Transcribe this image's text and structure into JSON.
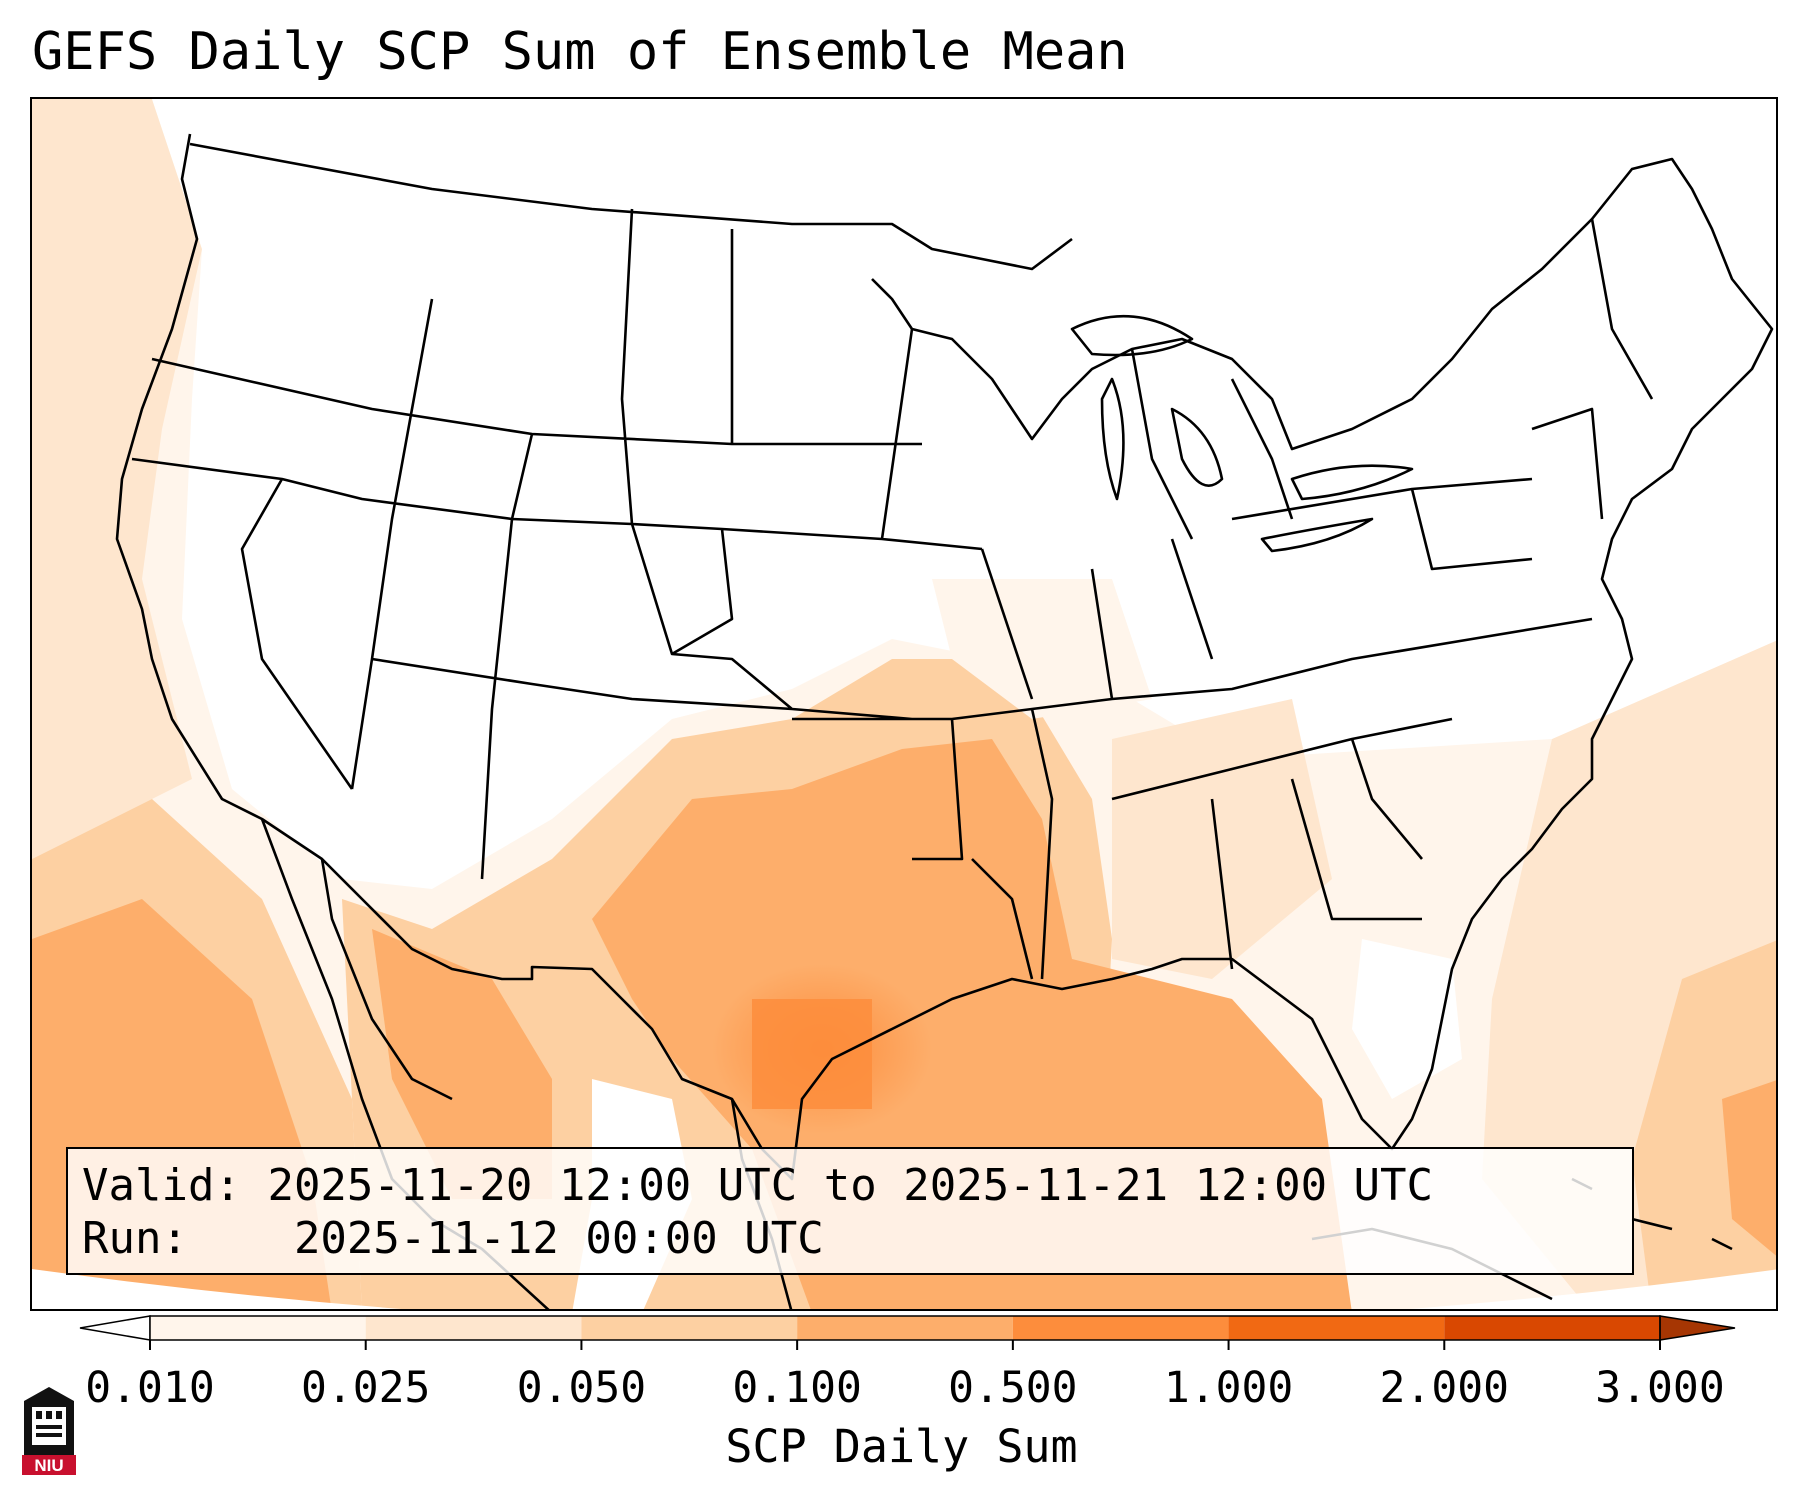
{
  "title": "GEFS Daily SCP Sum of Ensemble Mean",
  "info": {
    "valid_label": "Valid:",
    "valid_value": "2025-11-20 12:00 UTC to 2025-11-21 12:00 UTC",
    "run_label": "Run:",
    "run_value": "2025-11-12 00:00 UTC"
  },
  "colorbar": {
    "label": "SCP Daily Sum",
    "ticks": [
      "0.010",
      "0.025",
      "0.050",
      "0.100",
      "0.500",
      "1.000",
      "2.000",
      "3.000"
    ],
    "colors": [
      "#fff5eb",
      "#fee6ce",
      "#fdd0a2",
      "#fdae6b",
      "#fd8d3c",
      "#f16913",
      "#d94801"
    ],
    "extend_min_color": "#ffffff",
    "extend_max_color": "#a63603"
  },
  "logo": {
    "text": "NIU"
  }
}
